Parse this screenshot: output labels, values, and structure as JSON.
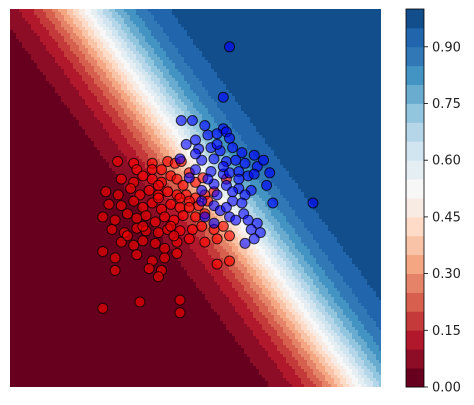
{
  "chart_data": {
    "type": "contour",
    "description_free": true,
    "axes": {
      "visible": false,
      "xlim": [
        -3.0,
        3.0
      ],
      "ylim": [
        -3.0,
        3.0
      ]
    },
    "decision_surface": {
      "model": "logistic",
      "weights": [
        2.1,
        1.55
      ],
      "bias": -0.82,
      "levels": [
        0.0,
        0.05,
        0.1,
        0.15,
        0.2,
        0.25,
        0.3,
        0.35,
        0.4,
        0.45,
        0.5,
        0.55,
        0.6,
        0.65,
        0.7,
        0.75,
        0.8,
        0.85,
        0.9,
        0.95,
        1.0
      ],
      "colormap": [
        "#67001f",
        "#8c0d25",
        "#b2182b",
        "#c4393a",
        "#d6604d",
        "#e58368",
        "#f4a582",
        "#f8c3a6",
        "#fddbc7",
        "#f8ebe4",
        "#f7f7f7",
        "#e5eef3",
        "#d1e5f0",
        "#b4d6e8",
        "#92c5de",
        "#6aacd0",
        "#4393c3",
        "#3079b6",
        "#2166ac",
        "#124d8c",
        "#053061"
      ]
    },
    "colorbar": {
      "ticks": [
        0.0,
        0.15,
        0.3,
        0.45,
        0.6,
        0.75,
        0.9
      ],
      "tick_labels": [
        "0.00",
        "0.15",
        "0.30",
        "0.45",
        "0.60",
        "0.75",
        "0.90"
      ],
      "range": [
        0.0,
        1.0
      ]
    },
    "series": [
      {
        "class": 0,
        "color": "#ff0000",
        "points": [
          [
            -1.26,
            0.58
          ],
          [
            -1.0,
            0.55
          ],
          [
            -0.95,
            0.45
          ],
          [
            -0.7,
            0.55
          ],
          [
            -0.7,
            0.45
          ],
          [
            -0.55,
            0.45
          ],
          [
            -0.45,
            0.58
          ],
          [
            -0.33,
            0.55
          ],
          [
            -0.23,
            0.58
          ],
          [
            -1.2,
            0.3
          ],
          [
            -1.0,
            0.25
          ],
          [
            -0.85,
            0.35
          ],
          [
            -0.7,
            0.3
          ],
          [
            -0.55,
            0.25
          ],
          [
            -0.4,
            0.35
          ],
          [
            -0.3,
            0.3
          ],
          [
            -0.2,
            0.2
          ],
          [
            -0.1,
            0.4
          ],
          [
            0.0,
            0.25
          ],
          [
            0.12,
            0.32
          ],
          [
            -1.45,
            0.1
          ],
          [
            -1.25,
            0.05
          ],
          [
            -1.05,
            0.15
          ],
          [
            -0.9,
            0.05
          ],
          [
            -0.75,
            0.12
          ],
          [
            -0.6,
            0.05
          ],
          [
            -0.45,
            0.1
          ],
          [
            -0.3,
            0.05
          ],
          [
            -0.15,
            0.05
          ],
          [
            0.0,
            0.0
          ],
          [
            0.15,
            0.05
          ],
          [
            -1.4,
            -0.1
          ],
          [
            -1.2,
            -0.12
          ],
          [
            -1.0,
            -0.05
          ],
          [
            -0.85,
            -0.15
          ],
          [
            -0.7,
            -0.08
          ],
          [
            -0.55,
            -0.18
          ],
          [
            -0.4,
            -0.1
          ],
          [
            -0.25,
            -0.15
          ],
          [
            -0.1,
            -0.05
          ],
          [
            0.05,
            -0.12
          ],
          [
            0.2,
            -0.05
          ],
          [
            -1.5,
            -0.3
          ],
          [
            -1.3,
            -0.35
          ],
          [
            -1.1,
            -0.25
          ],
          [
            -0.95,
            -0.32
          ],
          [
            -0.8,
            -0.28
          ],
          [
            -0.65,
            -0.38
          ],
          [
            -0.5,
            -0.3
          ],
          [
            -0.35,
            -0.35
          ],
          [
            -0.2,
            -0.28
          ],
          [
            0.0,
            -0.3
          ],
          [
            0.15,
            -0.25
          ],
          [
            -1.35,
            -0.5
          ],
          [
            -1.15,
            -0.55
          ],
          [
            -0.95,
            -0.48
          ],
          [
            -0.8,
            -0.52
          ],
          [
            -0.6,
            -0.55
          ],
          [
            -0.45,
            -0.5
          ],
          [
            -0.25,
            -0.52
          ],
          [
            -0.05,
            -0.5
          ],
          [
            0.1,
            -0.45
          ],
          [
            0.3,
            -0.5
          ],
          [
            0.45,
            -0.45
          ],
          [
            -1.2,
            -0.7
          ],
          [
            -1.0,
            -0.75
          ],
          [
            -0.85,
            -0.68
          ],
          [
            -0.65,
            -0.72
          ],
          [
            -0.5,
            -0.8
          ],
          [
            -0.3,
            -0.7
          ],
          [
            -0.1,
            -0.65
          ],
          [
            0.15,
            -0.7
          ],
          [
            0.35,
            -0.65
          ],
          [
            0.55,
            -0.6
          ],
          [
            -1.5,
            -0.85
          ],
          [
            -1.3,
            -0.95
          ],
          [
            -0.95,
            -0.9
          ],
          [
            -0.7,
            -1.0
          ],
          [
            -0.5,
            -0.95
          ],
          [
            -0.3,
            -0.88
          ],
          [
            -0.75,
            -1.12
          ],
          [
            -0.55,
            -1.15
          ],
          [
            -0.25,
            0.0
          ],
          [
            -0.6,
            0.2
          ],
          [
            -0.85,
            -0.45
          ],
          [
            -0.35,
            -0.6
          ],
          [
            0.3,
            0.1
          ],
          [
            0.5,
            0.3
          ],
          [
            -1.3,
            -1.15
          ],
          [
            -0.6,
            -1.25
          ],
          [
            -1.5,
            -1.75
          ],
          [
            -0.9,
            -1.65
          ],
          [
            -0.25,
            -1.62
          ],
          [
            -0.25,
            -1.82
          ],
          [
            0.55,
            -1.0
          ],
          [
            0.35,
            -1.05
          ],
          [
            -0.6,
            0.0
          ],
          [
            -0.4,
            -0.45
          ],
          [
            -0.1,
            -0.15
          ],
          [
            -1.1,
            -0.6
          ]
        ]
      },
      {
        "class": 1,
        "color": "#0000ff",
        "points": [
          [
            0.55,
            2.4
          ],
          [
            0.45,
            1.6
          ],
          [
            0.45,
            1.1
          ],
          [
            -0.05,
            1.23
          ],
          [
            -0.23,
            1.23
          ],
          [
            0.15,
            1.15
          ],
          [
            0.2,
            1.0
          ],
          [
            0.0,
            0.92
          ],
          [
            0.35,
            1.02
          ],
          [
            0.5,
            1.05
          ],
          [
            0.55,
            0.95
          ],
          [
            -0.15,
            0.85
          ],
          [
            0.05,
            0.78
          ],
          [
            0.25,
            0.8
          ],
          [
            0.4,
            0.75
          ],
          [
            0.6,
            0.8
          ],
          [
            0.75,
            0.72
          ],
          [
            0.95,
            0.68
          ],
          [
            -0.25,
            0.62
          ],
          [
            0.1,
            0.6
          ],
          [
            0.3,
            0.62
          ],
          [
            0.5,
            0.58
          ],
          [
            0.65,
            0.6
          ],
          [
            0.8,
            0.55
          ],
          [
            1.0,
            0.5
          ],
          [
            1.1,
            0.6
          ],
          [
            0.0,
            0.45
          ],
          [
            0.25,
            0.42
          ],
          [
            0.45,
            0.38
          ],
          [
            0.55,
            0.4
          ],
          [
            0.7,
            0.42
          ],
          [
            0.85,
            0.35
          ],
          [
            0.95,
            0.38
          ],
          [
            1.2,
            0.4
          ],
          [
            -0.1,
            0.32
          ],
          [
            0.3,
            0.22
          ],
          [
            0.5,
            0.2
          ],
          [
            0.7,
            0.15
          ],
          [
            0.9,
            0.12
          ],
          [
            0.8,
            0.05
          ],
          [
            0.1,
            0.12
          ],
          [
            0.35,
            0.05
          ],
          [
            0.6,
            -0.05
          ],
          [
            0.75,
            -0.08
          ],
          [
            1.25,
            -0.08
          ],
          [
            0.1,
            -0.05
          ],
          [
            0.3,
            -0.12
          ],
          [
            0.4,
            -0.2
          ],
          [
            0.55,
            -0.3
          ],
          [
            0.65,
            -0.35
          ],
          [
            0.78,
            -0.25
          ],
          [
            0.85,
            -0.35
          ],
          [
            1.0,
            -0.4
          ],
          [
            0.9,
            -0.5
          ],
          [
            1.05,
            -0.55
          ],
          [
            0.95,
            -0.65
          ],
          [
            0.8,
            -0.72
          ],
          [
            1.9,
            -0.08
          ],
          [
            0.3,
            -0.4
          ],
          [
            0.15,
            -0.3
          ],
          [
            0.6,
            0.1
          ],
          [
            0.45,
            0.5
          ],
          [
            0.2,
            0.3
          ],
          [
            0.0,
            0.7
          ],
          [
            0.7,
            0.3
          ],
          [
            0.5,
            -0.15
          ],
          [
            1.15,
            0.2
          ],
          [
            0.35,
            0.85
          ]
        ]
      }
    ]
  }
}
